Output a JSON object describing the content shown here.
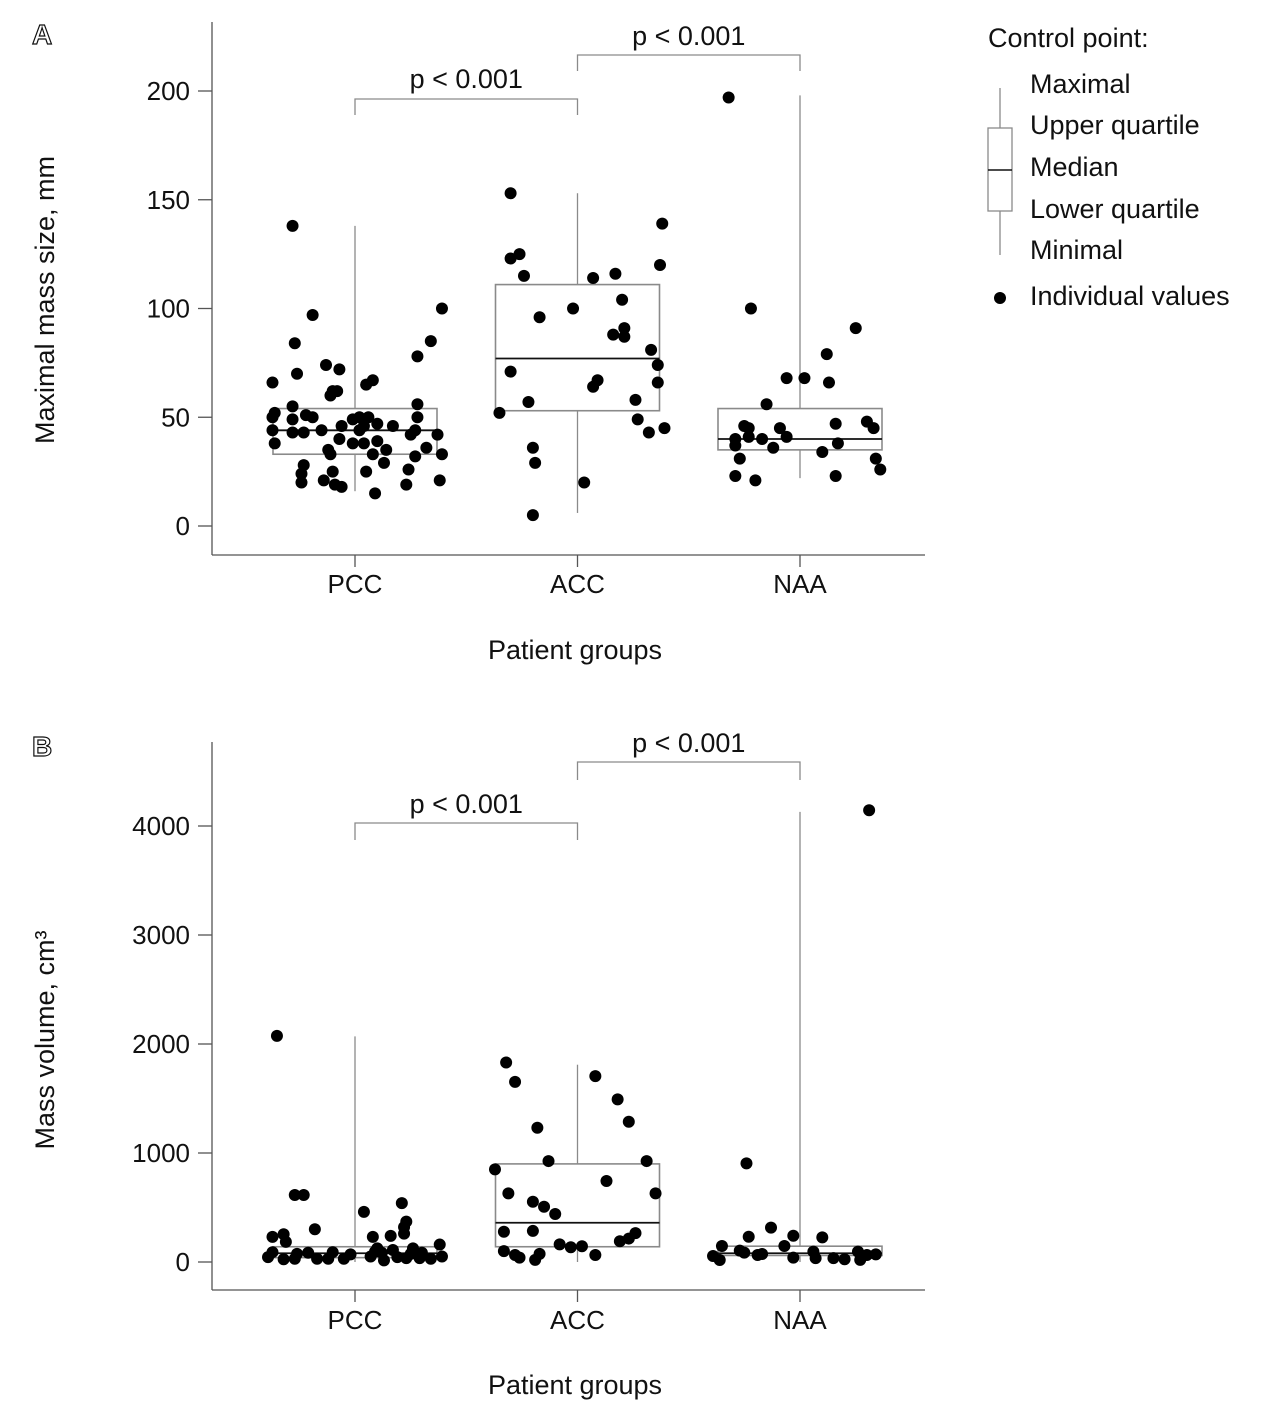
{
  "chart_data": [
    {
      "panel_label": "A",
      "type": "box",
      "title": "",
      "categories": [
        "PCC",
        "ACC",
        "NAA"
      ],
      "xlabel": "Patient groups",
      "ylabel": "Maximal mass size, mm",
      "ylim": [
        -13,
        230
      ],
      "yticks": [
        "0",
        "50",
        "100",
        "150",
        "200"
      ],
      "ytick_values": [
        0,
        50,
        100,
        150,
        200
      ],
      "boxes": [
        {
          "min": 16,
          "q1": 33,
          "median": 44,
          "q3": 54,
          "max": 138
        },
        {
          "min": 6,
          "q1": 53,
          "median": 77,
          "q3": 111,
          "max": 153
        },
        {
          "min": 22,
          "q1": 35,
          "median": 40,
          "q3": 54,
          "max": 198
        }
      ],
      "points": [
        [
          [
            -0.28,
            138
          ],
          [
            -0.19,
            97
          ],
          [
            -0.27,
            84
          ],
          [
            0.39,
            100
          ],
          [
            0.34,
            85
          ],
          [
            0.28,
            78
          ],
          [
            -0.37,
            66
          ],
          [
            -0.26,
            70
          ],
          [
            -0.13,
            74
          ],
          [
            -0.07,
            72
          ],
          [
            -0.1,
            62
          ],
          [
            -0.08,
            62
          ],
          [
            -0.11,
            60
          ],
          [
            0.05,
            65
          ],
          [
            0.08,
            67
          ],
          [
            0.28,
            56
          ],
          [
            -0.28,
            55
          ],
          [
            -0.36,
            52
          ],
          [
            -0.37,
            50
          ],
          [
            -0.28,
            49
          ],
          [
            -0.22,
            51
          ],
          [
            -0.19,
            50
          ],
          [
            0.28,
            50
          ],
          [
            -0.01,
            49
          ],
          [
            0.02,
            50
          ],
          [
            0.06,
            50
          ],
          [
            0.04,
            46
          ],
          [
            0.1,
            47
          ],
          [
            0.17,
            46
          ],
          [
            -0.37,
            44
          ],
          [
            -0.15,
            44
          ],
          [
            -0.06,
            46
          ],
          [
            -0.28,
            43
          ],
          [
            -0.23,
            43
          ],
          [
            0.02,
            44
          ],
          [
            0.27,
            44
          ],
          [
            0.25,
            42
          ],
          [
            0.37,
            42
          ],
          [
            -0.36,
            38
          ],
          [
            -0.07,
            40
          ],
          [
            -0.01,
            38
          ],
          [
            0.04,
            38
          ],
          [
            0.1,
            39
          ],
          [
            0.32,
            36
          ],
          [
            -0.12,
            35
          ],
          [
            -0.11,
            33
          ],
          [
            0.08,
            33
          ],
          [
            0.14,
            35
          ],
          [
            0.27,
            32
          ],
          [
            0.39,
            33
          ],
          [
            0.13,
            29
          ],
          [
            -0.23,
            28
          ],
          [
            -0.24,
            24
          ],
          [
            -0.1,
            25
          ],
          [
            0.24,
            26
          ],
          [
            0.05,
            25
          ],
          [
            -0.24,
            20
          ],
          [
            -0.14,
            21
          ],
          [
            -0.09,
            19
          ],
          [
            -0.06,
            18
          ],
          [
            0.23,
            19
          ],
          [
            0.38,
            21
          ],
          [
            0.09,
            15
          ]
        ],
        [
          [
            -0.3,
            153
          ],
          [
            -0.3,
            123
          ],
          [
            -0.26,
            125
          ],
          [
            -0.24,
            115
          ],
          [
            0.38,
            139
          ],
          [
            0.37,
            120
          ],
          [
            0.07,
            114
          ],
          [
            0.17,
            116
          ],
          [
            0.2,
            104
          ],
          [
            -0.17,
            96
          ],
          [
            -0.02,
            100
          ],
          [
            0.21,
            91
          ],
          [
            0.16,
            88
          ],
          [
            0.21,
            87
          ],
          [
            0.33,
            81
          ],
          [
            0.36,
            74
          ],
          [
            -0.3,
            71
          ],
          [
            0.09,
            67
          ],
          [
            0.07,
            64
          ],
          [
            0.36,
            66
          ],
          [
            -0.22,
            57
          ],
          [
            0.26,
            58
          ],
          [
            -0.35,
            52
          ],
          [
            0.27,
            49
          ],
          [
            0.32,
            43
          ],
          [
            0.39,
            45
          ],
          [
            -0.2,
            36
          ],
          [
            -0.19,
            29
          ],
          [
            0.03,
            20
          ],
          [
            -0.2,
            5
          ]
        ],
        [
          [
            -0.32,
            197
          ],
          [
            -0.22,
            100
          ],
          [
            0.25,
            91
          ],
          [
            0.12,
            79
          ],
          [
            -0.06,
            68
          ],
          [
            0.02,
            68
          ],
          [
            0.13,
            66
          ],
          [
            -0.15,
            56
          ],
          [
            -0.25,
            46
          ],
          [
            -0.23,
            45
          ],
          [
            -0.09,
            45
          ],
          [
            -0.06,
            41
          ],
          [
            0.16,
            47
          ],
          [
            0.3,
            48
          ],
          [
            0.33,
            45
          ],
          [
            -0.29,
            40
          ],
          [
            -0.23,
            41
          ],
          [
            -0.17,
            40
          ],
          [
            -0.29,
            37
          ],
          [
            -0.12,
            36
          ],
          [
            0.17,
            38
          ],
          [
            0.1,
            34
          ],
          [
            -0.27,
            31
          ],
          [
            0.34,
            31
          ],
          [
            0.36,
            26
          ],
          [
            -0.29,
            23
          ],
          [
            -0.2,
            21
          ],
          [
            0.16,
            23
          ]
        ]
      ],
      "comparisons": [
        {
          "from": "PCC",
          "to": "ACC",
          "label": "p < 0.001"
        },
        {
          "from": "ACC",
          "to": "NAA",
          "label": "p < 0.001"
        }
      ]
    },
    {
      "panel_label": "B",
      "type": "box",
      "title": "",
      "categories": [
        "PCC",
        "ACC",
        "NAA"
      ],
      "xlabel": "Patient groups",
      "ylabel": "Mass volume, cm³",
      "ylim": [
        -260,
        4770
      ],
      "yticks": [
        "0",
        "1000",
        "2000",
        "3000",
        "4000"
      ],
      "ytick_values": [
        0,
        1000,
        2000,
        3000,
        4000
      ],
      "boxes": [
        {
          "min": 0,
          "q1": 40,
          "median": 80,
          "q3": 140,
          "max": 2070
        },
        {
          "min": 0,
          "q1": 140,
          "median": 360,
          "q3": 900,
          "max": 1810
        },
        {
          "min": 0,
          "q1": 60,
          "median": 80,
          "q3": 145,
          "max": 4130
        }
      ],
      "points": [
        [
          [
            -0.35,
            2075
          ],
          [
            -0.27,
            615
          ],
          [
            -0.23,
            615
          ],
          [
            -0.18,
            300
          ],
          [
            0.04,
            460
          ],
          [
            0.21,
            540
          ],
          [
            0.23,
            370
          ],
          [
            0.22,
            320
          ],
          [
            0.22,
            260
          ],
          [
            0.16,
            240
          ],
          [
            0.08,
            230
          ],
          [
            -0.37,
            230
          ],
          [
            -0.32,
            255
          ],
          [
            -0.31,
            185
          ],
          [
            0.38,
            160
          ],
          [
            -0.39,
            45
          ],
          [
            -0.32,
            25
          ],
          [
            -0.27,
            30
          ],
          [
            -0.37,
            90
          ],
          [
            -0.26,
            75
          ],
          [
            -0.21,
            85
          ],
          [
            -0.17,
            30
          ],
          [
            -0.12,
            30
          ],
          [
            -0.1,
            90
          ],
          [
            -0.05,
            30
          ],
          [
            -0.02,
            70
          ],
          [
            0.07,
            50
          ],
          [
            0.09,
            95
          ],
          [
            0.13,
            15
          ],
          [
            0.12,
            85
          ],
          [
            0.17,
            110
          ],
          [
            0.19,
            45
          ],
          [
            0.23,
            35
          ],
          [
            0.26,
            125
          ],
          [
            0.29,
            35
          ],
          [
            0.3,
            85
          ],
          [
            0.34,
            30
          ],
          [
            0.39,
            50
          ],
          [
            0.1,
            125
          ],
          [
            0.25,
            75
          ]
        ],
        [
          [
            -0.32,
            1830
          ],
          [
            -0.28,
            1653
          ],
          [
            0.08,
            1705
          ],
          [
            0.18,
            1492
          ],
          [
            0.23,
            1287
          ],
          [
            -0.18,
            1232
          ],
          [
            -0.13,
            926
          ],
          [
            -0.37,
            850
          ],
          [
            0.31,
            926
          ],
          [
            0.13,
            743
          ],
          [
            0.35,
            630
          ],
          [
            -0.31,
            630
          ],
          [
            -0.2,
            553
          ],
          [
            -0.15,
            507
          ],
          [
            -0.1,
            440
          ],
          [
            -0.33,
            278
          ],
          [
            -0.2,
            285
          ],
          [
            -0.08,
            162
          ],
          [
            -0.03,
            135
          ],
          [
            0.02,
            145
          ],
          [
            0.19,
            190
          ],
          [
            0.23,
            215
          ],
          [
            0.26,
            265
          ],
          [
            -0.33,
            100
          ],
          [
            -0.28,
            64
          ],
          [
            -0.26,
            40
          ],
          [
            -0.19,
            20
          ],
          [
            -0.17,
            75
          ],
          [
            0.08,
            64
          ]
        ],
        [
          [
            0.31,
            4145
          ],
          [
            -0.24,
            905
          ],
          [
            -0.13,
            315
          ],
          [
            -0.23,
            232
          ],
          [
            -0.03,
            241
          ],
          [
            0.1,
            226
          ],
          [
            -0.07,
            147
          ],
          [
            -0.35,
            147
          ],
          [
            -0.27,
            104
          ],
          [
            -0.25,
            86
          ],
          [
            -0.19,
            64
          ],
          [
            -0.17,
            73
          ],
          [
            -0.39,
            55
          ],
          [
            -0.36,
            18
          ],
          [
            -0.03,
            40
          ],
          [
            0.06,
            95
          ],
          [
            0.07,
            35
          ],
          [
            0.15,
            35
          ],
          [
            0.2,
            25
          ],
          [
            0.26,
            95
          ],
          [
            0.27,
            20
          ],
          [
            0.3,
            64
          ],
          [
            0.34,
            70
          ]
        ]
      ],
      "comparisons": [
        {
          "from": "PCC",
          "to": "ACC",
          "label": "p < 0.001"
        },
        {
          "from": "ACC",
          "to": "NAA",
          "label": "p < 0.001"
        }
      ]
    }
  ],
  "legend": {
    "title": "Control point:",
    "items": [
      "Maximal",
      "Upper quartile",
      "Median",
      "Lower quartile",
      "Minimal",
      "Individual values"
    ],
    "placement": "top-right"
  },
  "colors": {
    "box": "#8a8a8a",
    "median": "#111111",
    "point": "#000000",
    "axis": "#555555"
  }
}
